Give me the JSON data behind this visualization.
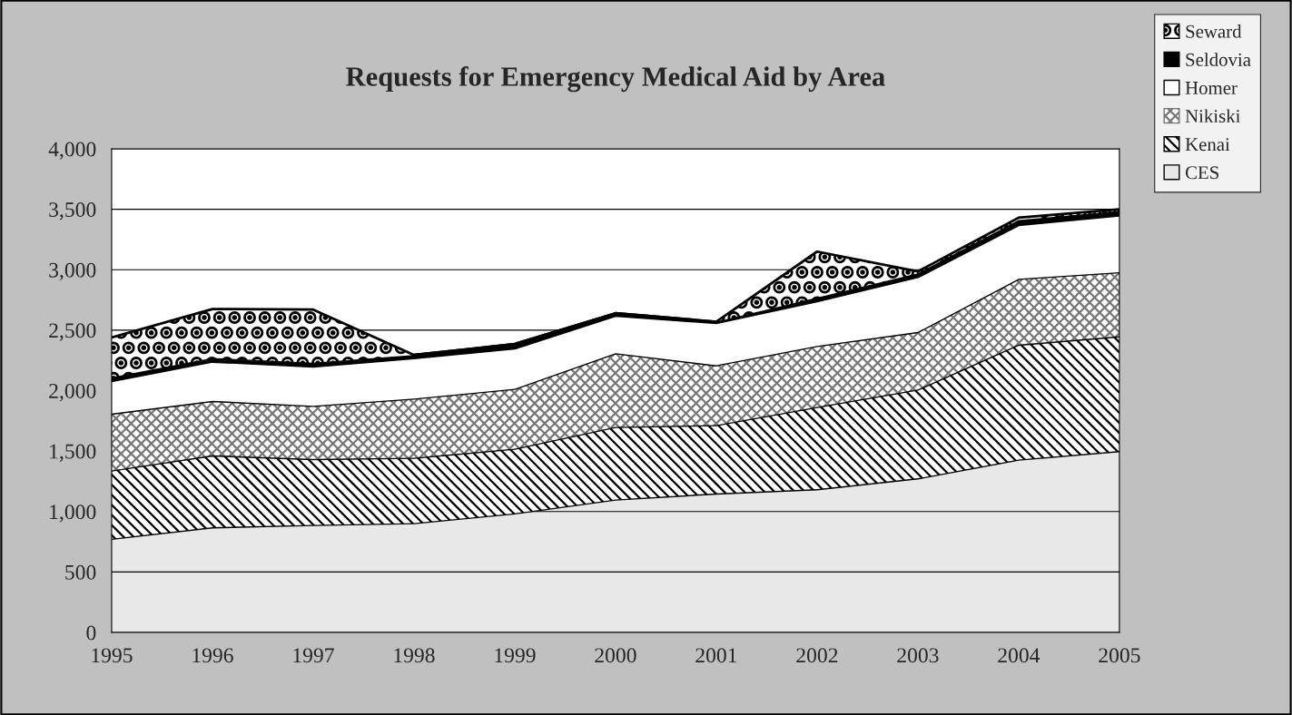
{
  "chart_data": {
    "type": "area",
    "title": "Requests for Emergency Medical Aid by Area",
    "stacked": true,
    "categories": [
      "1995",
      "1996",
      "1997",
      "1998",
      "1999",
      "2000",
      "2001",
      "2002",
      "2003",
      "2004",
      "2005"
    ],
    "series": [
      {
        "name": "CES",
        "color": "#e8e8e8",
        "values": [
          775,
          870,
          890,
          905,
          985,
          1100,
          1150,
          1185,
          1275,
          1430,
          1500
        ]
      },
      {
        "name": "Kenai",
        "color": "#ffffff",
        "values": [
          565,
          595,
          545,
          540,
          535,
          600,
          565,
          680,
          735,
          950,
          950
        ]
      },
      {
        "name": "Nikiski",
        "color": "#ffffff",
        "values": [
          470,
          450,
          440,
          490,
          495,
          610,
          495,
          505,
          475,
          545,
          530
        ]
      },
      {
        "name": "Homer",
        "color": "#ffffff",
        "values": [
          270,
          325,
          325,
          335,
          335,
          310,
          350,
          370,
          455,
          445,
          470
        ]
      },
      {
        "name": "Seldovia",
        "color": "#000000",
        "values": [
          30,
          30,
          30,
          25,
          35,
          20,
          10,
          30,
          30,
          40,
          35
        ]
      },
      {
        "name": "Seward",
        "color": "#ffffff",
        "values": [
          330,
          405,
          440,
          0,
          0,
          0,
          0,
          380,
          15,
          20,
          15
        ]
      }
    ],
    "ylim": [
      0,
      4000
    ],
    "yticks": [
      {
        "value": 0,
        "label": "0"
      },
      {
        "value": 500,
        "label": "500"
      },
      {
        "value": 1000,
        "label": "1,000"
      },
      {
        "value": 1500,
        "label": "1,500"
      },
      {
        "value": 2000,
        "label": "2,000"
      },
      {
        "value": 2500,
        "label": "2,500"
      },
      {
        "value": 3000,
        "label": "3,000"
      },
      {
        "value": 3500,
        "label": "3,500"
      },
      {
        "value": 4000,
        "label": "4,000"
      }
    ],
    "grid": "y",
    "legend": "top right"
  }
}
